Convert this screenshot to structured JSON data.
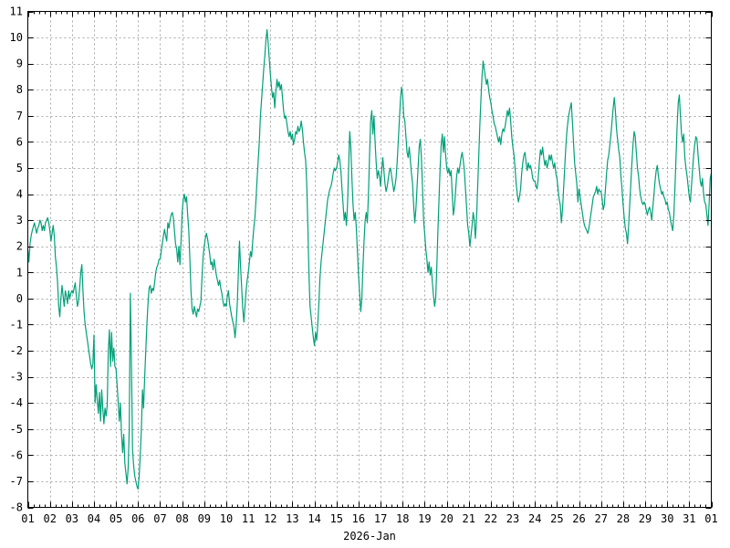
{
  "chart": {
    "xlabel": "2026-Jan",
    "line_color": "#00a078",
    "grid_color": "#a8a8a8",
    "axis_color": "#000000",
    "background_color": "#ffffff"
  },
  "chart_data": {
    "type": "line",
    "title": "",
    "xlabel": "2026-Jan",
    "ylabel": "",
    "x_unit": "day of month, January 2026",
    "xmin": 1,
    "xmax": 32,
    "ymin": -8,
    "ymax": 11,
    "grid": true,
    "x_minor_step": 0.25,
    "x_tick_values": [
      1,
      2,
      3,
      4,
      5,
      6,
      7,
      8,
      9,
      10,
      11,
      12,
      13,
      14,
      15,
      16,
      17,
      18,
      19,
      20,
      21,
      22,
      23,
      24,
      25,
      26,
      27,
      28,
      29,
      30,
      31,
      32
    ],
    "x_tick_labels": [
      "01",
      "02",
      "03",
      "04",
      "05",
      "06",
      "07",
      "08",
      "09",
      "10",
      "11",
      "12",
      "13",
      "14",
      "15",
      "16",
      "17",
      "18",
      "19",
      "20",
      "21",
      "22",
      "23",
      "24",
      "25",
      "26",
      "27",
      "28",
      "29",
      "30",
      "31",
      "01"
    ],
    "y_tick_values": [
      -8,
      -7,
      -6,
      -5,
      -4,
      -3,
      -2,
      -1,
      0,
      1,
      2,
      3,
      4,
      5,
      6,
      7,
      8,
      9,
      10,
      11
    ],
    "y_tick_labels": [
      "-8",
      "-7",
      "-6",
      "-5",
      "-4",
      "-3",
      "-2",
      "-1",
      "0",
      "1",
      "2",
      "3",
      "4",
      "5",
      "6",
      "7",
      "8",
      "9",
      "10",
      "11"
    ],
    "x_start": 1,
    "x_step": 0.05,
    "values": [
      [
        1.9,
        1.4,
        2.1,
        2.4,
        2.6,
        2.75,
        2.9,
        2.7,
        2.5,
        2.7,
        2.8,
        3.0,
        2.9,
        2.6,
        2.8,
        2.6,
        2.9,
        3.0,
        3.1,
        2.9
      ],
      [
        2.6,
        2.2,
        2.5,
        2.8,
        2.4,
        1.6,
        1.2,
        0.6,
        -0.3,
        -0.7,
        0.0,
        0.5,
        0.1,
        -0.3,
        0.3,
        0.1,
        -0.2,
        0.3,
        0.0,
        0.2
      ],
      [
        0.3,
        0.2,
        0.4,
        0.6,
        0.1,
        -0.3,
        -0.1,
        0.4,
        1.0,
        1.3,
        0.3,
        -0.5,
        -1.0,
        -1.3,
        -1.6,
        -1.9,
        -2.2,
        -2.5,
        -2.7,
        -2.5
      ],
      [
        -1.4,
        -4.0,
        -3.3,
        -3.9,
        -4.4,
        -3.6,
        -4.7,
        -3.5,
        -4.2,
        -4.8,
        -4.2,
        -4.5,
        -4.1,
        -2.0,
        -1.2,
        -2.6,
        -1.3,
        -2.4,
        -1.9,
        -2.6
      ],
      [
        -2.7,
        -3.3,
        -4.0,
        -4.7,
        -4.0,
        -5.2,
        -5.9,
        -5.2,
        -6.3,
        -6.7,
        -7.1,
        -6.5,
        -5.0,
        0.2,
        -2.5,
        -5.8,
        -6.4,
        -6.8,
        -7.0,
        -7.2
      ],
      [
        -7.3,
        -6.8,
        -6.0,
        -5.0,
        -3.5,
        -4.2,
        -3.0,
        -2.0,
        -1.0,
        -0.2,
        0.4,
        0.5,
        0.2,
        0.4,
        0.3,
        0.6,
        1.0,
        1.2,
        1.3,
        1.5
      ],
      [
        1.5,
        1.8,
        2.1,
        2.4,
        2.65,
        2.4,
        2.2,
        2.9,
        2.7,
        3.0,
        3.2,
        3.3,
        3.1,
        2.6,
        2.1,
        1.9,
        1.4,
        2.0,
        1.3,
        2.2
      ],
      [
        3.3,
        3.8,
        4.0,
        3.7,
        3.9,
        3.2,
        2.6,
        1.5,
        0.3,
        -0.4,
        -0.6,
        -0.3,
        -0.5,
        -0.7,
        -0.4,
        -0.5,
        -0.3,
        -0.1,
        0.8,
        1.6
      ],
      [
        2.0,
        2.3,
        2.5,
        2.3,
        2.0,
        1.7,
        1.3,
        1.4,
        1.1,
        1.5,
        1.2,
        0.9,
        0.7,
        0.5,
        0.7,
        0.4,
        0.2,
        -0.1,
        -0.3,
        -0.2
      ],
      [
        -0.3,
        0.1,
        0.3,
        -0.2,
        -0.45,
        -0.7,
        -0.9,
        -1.1,
        -1.5,
        -1.0,
        -0.2,
        1.0,
        2.2,
        1.2,
        0.4,
        -0.4,
        -0.9,
        -0.3,
        0.3,
        0.7
      ],
      [
        1.0,
        1.4,
        1.8,
        1.6,
        2.2,
        2.7,
        3.1,
        3.8,
        4.6,
        5.3,
        6.0,
        7.0,
        7.6,
        8.2,
        8.8,
        9.3,
        9.9,
        10.3,
        9.8,
        9.2
      ],
      [
        8.6,
        8.1,
        7.7,
        7.9,
        7.3,
        7.9,
        8.4,
        8.1,
        8.3,
        8.0,
        8.2,
        7.7,
        7.2,
        6.9,
        7.0,
        6.7,
        6.4,
        6.2,
        6.4,
        6.1
      ],
      [
        6.3,
        5.9,
        6.1,
        6.4,
        6.3,
        6.6,
        6.4,
        6.5,
        6.8,
        6.5,
        6.0,
        5.6,
        5.3,
        4.4,
        2.8,
        1.0,
        -0.3,
        -0.7,
        -1.1,
        -1.5
      ],
      [
        -1.8,
        -1.3,
        -1.6,
        -1.0,
        -0.2,
        0.8,
        1.4,
        1.8,
        2.2,
        2.6,
        3.0,
        3.4,
        3.8,
        4.0,
        4.2,
        4.3,
        4.5,
        4.8,
        5.0,
        4.9
      ],
      [
        5.0,
        5.2,
        5.5,
        5.3,
        4.9,
        4.2,
        3.6,
        3.0,
        3.3,
        2.8,
        3.6,
        5.0,
        6.4,
        5.8,
        4.6,
        3.6,
        3.0,
        3.3,
        2.7,
        1.8
      ],
      [
        0.9,
        0.2,
        -0.5,
        0.0,
        1.2,
        2.2,
        3.0,
        3.3,
        2.9,
        4.0,
        5.5,
        6.8,
        7.2,
        6.3,
        7.0,
        6.0,
        5.2,
        4.6,
        4.9,
        4.7
      ],
      [
        4.3,
        4.9,
        5.4,
        4.9,
        4.4,
        4.1,
        4.3,
        4.6,
        4.9,
        5.0,
        4.7,
        4.4,
        4.1,
        4.3,
        4.6,
        5.2,
        6.0,
        6.8,
        7.6,
        8.1
      ],
      [
        7.8,
        7.0,
        6.8,
        6.2,
        5.6,
        5.4,
        5.8,
        5.3,
        4.8,
        4.4,
        3.6,
        2.9,
        3.4,
        4.2,
        5.0,
        5.8,
        6.1,
        5.4,
        4.3,
        3.0
      ],
      [
        2.5,
        1.9,
        1.5,
        1.0,
        1.4,
        0.9,
        1.2,
        0.6,
        0.1,
        -0.3,
        0.0,
        1.2,
        2.6,
        3.8,
        5.0,
        5.9,
        6.3,
        5.6,
        6.2,
        5.5
      ],
      [
        5.0,
        4.8,
        5.0,
        4.7,
        4.9,
        4.0,
        3.2,
        3.5,
        4.1,
        4.7,
        5.0,
        4.8,
        5.1,
        5.4,
        5.6,
        5.3,
        4.9,
        4.2,
        3.5,
        2.8
      ],
      [
        2.5,
        2.0,
        2.4,
        2.8,
        3.3,
        3.0,
        2.3,
        3.0,
        4.2,
        5.4,
        6.6,
        7.6,
        8.5,
        9.1,
        8.8,
        8.5,
        8.2,
        8.4,
        8.0,
        7.7
      ],
      [
        7.5,
        7.2,
        7.0,
        6.7,
        6.6,
        6.4,
        6.2,
        6.0,
        6.2,
        5.9,
        6.3,
        6.5,
        6.4,
        6.6,
        6.9,
        7.2,
        7.0,
        7.3,
        6.8,
        6.2
      ],
      [
        5.8,
        5.5,
        5.0,
        4.4,
        4.0,
        3.7,
        3.9,
        4.2,
        4.8,
        5.2,
        5.5,
        5.6,
        5.2,
        4.9,
        5.2,
        5.0,
        5.1,
        4.9,
        4.6,
        4.5
      ],
      [
        4.5,
        4.3,
        4.2,
        4.6,
        5.2,
        5.7,
        5.5,
        5.8,
        5.4,
        5.1,
        5.3,
        5.0,
        5.2,
        5.5,
        5.3,
        5.5,
        5.2,
        5.0,
        5.2,
        4.8
      ],
      [
        4.6,
        4.2,
        3.8,
        3.6,
        2.9,
        3.4,
        4.2,
        5.0,
        5.8,
        6.4,
        6.8,
        7.1,
        7.3,
        7.5,
        6.8,
        6.0,
        5.2,
        4.8,
        4.4,
        3.7
      ],
      [
        4.2,
        3.9,
        3.6,
        3.3,
        3.0,
        2.8,
        2.7,
        2.6,
        2.5,
        2.7,
        3.0,
        3.3,
        3.6,
        3.9,
        4.0,
        4.1,
        4.3,
        4.0,
        4.2,
        4.1
      ],
      [
        4.1,
        3.8,
        3.4,
        3.6,
        4.2,
        4.8,
        5.3,
        5.5,
        5.9,
        6.3,
        6.8,
        7.3,
        7.7,
        7.2,
        6.5,
        6.1,
        5.7,
        5.4,
        4.7,
        4.2
      ],
      [
        3.6,
        3.1,
        2.7,
        2.5,
        2.1,
        2.8,
        3.6,
        4.4,
        5.2,
        5.9,
        6.4,
        6.2,
        5.6,
        5.0,
        4.7,
        4.2,
        3.9,
        3.7,
        3.6,
        3.7
      ],
      [
        3.6,
        3.4,
        3.2,
        3.4,
        3.5,
        3.3,
        3.0,
        3.5,
        4.0,
        4.5,
        4.9,
        5.1,
        4.7,
        4.4,
        4.2,
        4.0,
        4.1,
        3.9,
        3.8,
        3.6
      ],
      [
        3.7,
        3.4,
        3.3,
        3.0,
        2.8,
        2.6,
        3.2,
        4.2,
        5.4,
        6.6,
        7.5,
        7.8,
        7.0,
        6.3,
        6.0,
        6.3,
        5.4,
        5.0,
        4.7,
        4.3
      ],
      [
        3.9,
        3.7,
        4.3,
        4.9,
        5.5,
        5.9,
        6.2,
        6.1,
        5.5,
        5.0,
        4.5,
        4.3,
        4.6,
        4.0,
        3.7,
        3.6,
        3.2,
        2.8,
        3.6,
        4.6
      ],
      [
        4.8
      ]
    ]
  }
}
